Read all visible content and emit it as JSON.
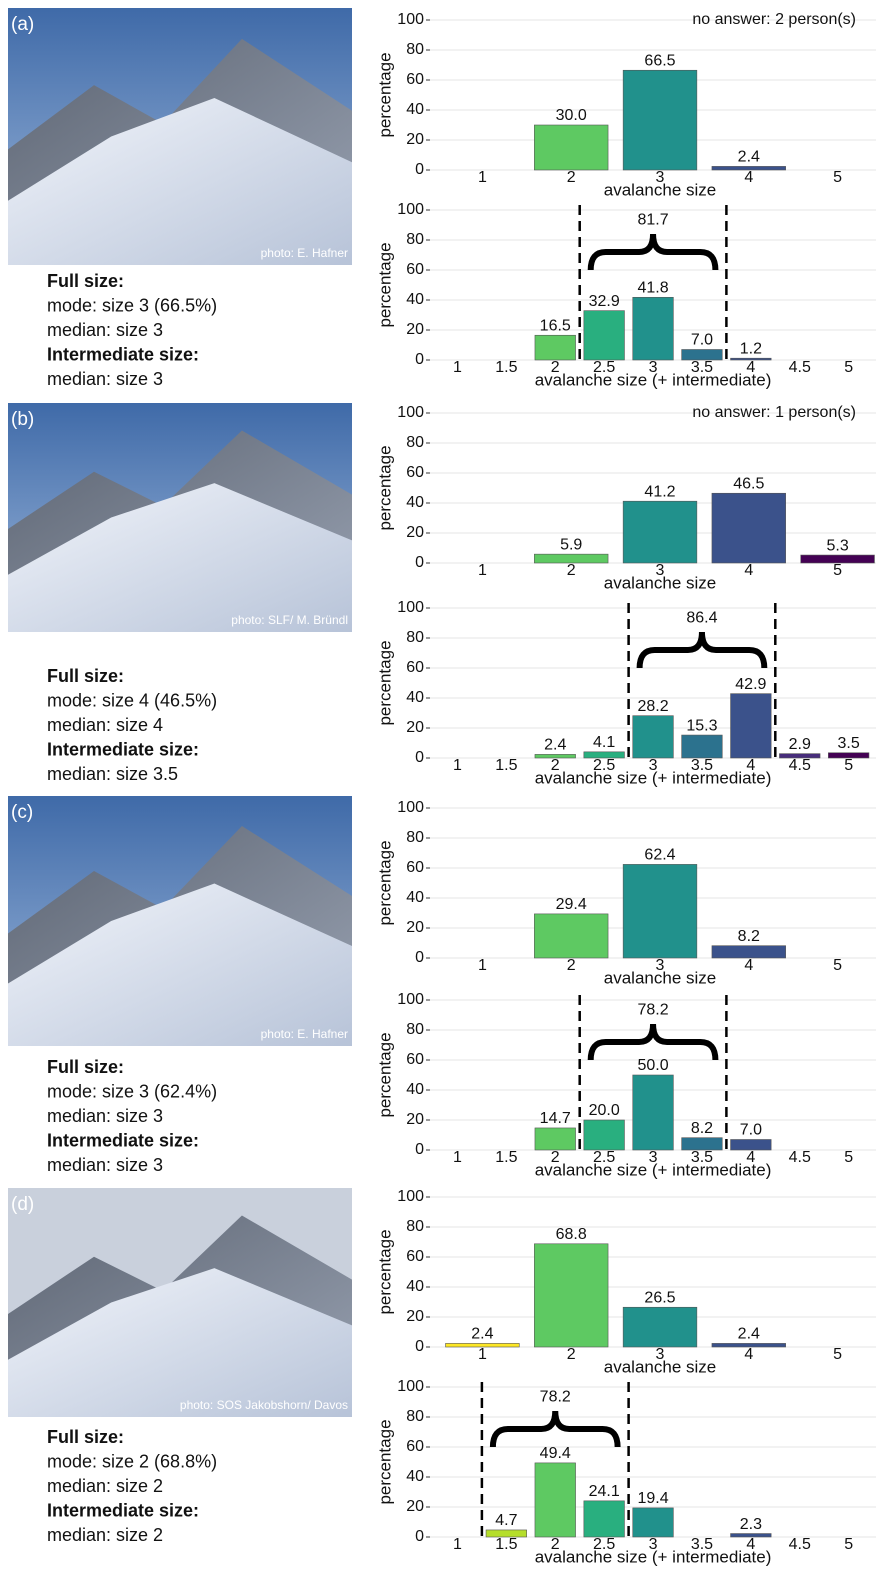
{
  "panels": [
    {
      "label": "(a)",
      "credit": "photo: E. Hafner",
      "summary": [
        "Full size:",
        "mode: size 3 (66.5%)",
        "median: size 3",
        "Intermediate size:",
        "median: size 3"
      ]
    },
    {
      "label": "(b)",
      "credit": "photo: SLF/ M. Bründl",
      "summary": [
        "Full size:",
        "mode: size 4 (46.5%)",
        "median: size 4",
        "Intermediate size:",
        "median: size 3.5"
      ]
    },
    {
      "label": "(c)",
      "credit": "photo: E. Hafner",
      "summary": [
        "Full size:",
        "mode: size 3 (62.4%)",
        "median: size 3",
        "Intermediate size:",
        "median: size 3"
      ]
    },
    {
      "label": "(d)",
      "credit": "photo: SOS Jakobshorn/ Davos",
      "summary": [
        "Full size:",
        "mode: size 2 (68.8%)",
        "median: size 2",
        "Intermediate size:",
        "median: size 2"
      ]
    }
  ],
  "chart_data": [
    {
      "type": "bar",
      "xlabel": "avalanche size",
      "ylabel": "percentage",
      "annotation": "no answer:  2 person(s)",
      "categories": [
        "1",
        "2",
        "3",
        "4",
        "5"
      ],
      "values": [
        0,
        30.0,
        66.5,
        2.4,
        0
      ],
      "value_labels": [
        null,
        "30.0",
        "66.5",
        "2.4",
        null
      ],
      "colors": [
        "#fde725",
        "#5ec962",
        "#21918c",
        "#3b528b",
        "#440154"
      ],
      "ylim": [
        0,
        100
      ],
      "yticks": [
        0,
        20,
        40,
        60,
        80,
        100
      ],
      "grid": true
    },
    {
      "type": "bar",
      "xlabel": "avalanche size (+ intermediate)",
      "ylabel": "percentage",
      "categories": [
        "1",
        "1.5",
        "2",
        "2.5",
        "3",
        "3.5",
        "4",
        "4.5",
        "5"
      ],
      "values": [
        0,
        0,
        16.5,
        32.9,
        41.8,
        7.0,
        1.2,
        0,
        0
      ],
      "value_labels": [
        null,
        null,
        "16.5",
        "32.9",
        "41.8",
        "7.0",
        "1.2",
        null,
        null
      ],
      "colors": [
        "#fde725",
        "#b5de2b",
        "#5ec962",
        "#29af7f",
        "#21918c",
        "#2c728e",
        "#3b528b",
        "#472d7b",
        "#440154"
      ],
      "ylim": [
        0,
        100
      ],
      "yticks": [
        0,
        20,
        40,
        60,
        80,
        100
      ],
      "grid": true,
      "bracket": {
        "value": 81.7,
        "categories": [
          "2.5",
          "3.5"
        ]
      }
    },
    {
      "type": "bar",
      "xlabel": "avalanche size",
      "ylabel": "percentage",
      "annotation": "no answer:  1 person(s)",
      "categories": [
        "1",
        "2",
        "3",
        "4",
        "5"
      ],
      "values": [
        0,
        5.9,
        41.2,
        46.5,
        5.3
      ],
      "value_labels": [
        null,
        "5.9",
        "41.2",
        "46.5",
        "5.3"
      ],
      "colors": [
        "#fde725",
        "#5ec962",
        "#21918c",
        "#3b528b",
        "#440154"
      ],
      "ylim": [
        0,
        100
      ],
      "yticks": [
        0,
        20,
        40,
        60,
        80,
        100
      ],
      "grid": true
    },
    {
      "type": "bar",
      "xlabel": "avalanche size (+ intermediate)",
      "ylabel": "percentage",
      "categories": [
        "1",
        "1.5",
        "2",
        "2.5",
        "3",
        "3.5",
        "4",
        "4.5",
        "5"
      ],
      "values": [
        0,
        0,
        2.4,
        4.1,
        28.2,
        15.3,
        42.9,
        2.9,
        3.5
      ],
      "value_labels": [
        null,
        null,
        "2.4",
        "4.1",
        "28.2",
        "15.3",
        "42.9",
        "2.9",
        "3.5"
      ],
      "colors": [
        "#fde725",
        "#b5de2b",
        "#5ec962",
        "#29af7f",
        "#21918c",
        "#2c728e",
        "#3b528b",
        "#472d7b",
        "#440154"
      ],
      "ylim": [
        0,
        100
      ],
      "yticks": [
        0,
        20,
        40,
        60,
        80,
        100
      ],
      "grid": true,
      "bracket": {
        "value": 86.4,
        "categories": [
          "3",
          "4"
        ]
      }
    },
    {
      "type": "bar",
      "xlabel": "avalanche size",
      "ylabel": "percentage",
      "categories": [
        "1",
        "2",
        "3",
        "4",
        "5"
      ],
      "values": [
        0,
        29.4,
        62.4,
        8.2,
        0
      ],
      "value_labels": [
        null,
        "29.4",
        "62.4",
        "8.2",
        null
      ],
      "colors": [
        "#fde725",
        "#5ec962",
        "#21918c",
        "#3b528b",
        "#440154"
      ],
      "ylim": [
        0,
        100
      ],
      "yticks": [
        0,
        20,
        40,
        60,
        80,
        100
      ],
      "grid": true
    },
    {
      "type": "bar",
      "xlabel": "avalanche size (+ intermediate)",
      "ylabel": "percentage",
      "categories": [
        "1",
        "1.5",
        "2",
        "2.5",
        "3",
        "3.5",
        "4",
        "4.5",
        "5"
      ],
      "values": [
        0,
        0,
        14.7,
        20.0,
        50.0,
        8.2,
        7.0,
        0,
        0
      ],
      "value_labels": [
        null,
        null,
        "14.7",
        "20.0",
        "50.0",
        "8.2",
        "7.0",
        null,
        null
      ],
      "colors": [
        "#fde725",
        "#b5de2b",
        "#5ec962",
        "#29af7f",
        "#21918c",
        "#2c728e",
        "#3b528b",
        "#472d7b",
        "#440154"
      ],
      "ylim": [
        0,
        100
      ],
      "yticks": [
        0,
        20,
        40,
        60,
        80,
        100
      ],
      "grid": true,
      "bracket": {
        "value": 78.2,
        "categories": [
          "2.5",
          "3.5"
        ]
      }
    },
    {
      "type": "bar",
      "xlabel": "avalanche size",
      "ylabel": "percentage",
      "categories": [
        "1",
        "2",
        "3",
        "4",
        "5"
      ],
      "values": [
        2.4,
        68.8,
        26.5,
        2.4,
        0
      ],
      "value_labels": [
        "2.4",
        "68.8",
        "26.5",
        "2.4",
        null
      ],
      "colors": [
        "#fde725",
        "#5ec962",
        "#21918c",
        "#3b528b",
        "#440154"
      ],
      "ylim": [
        0,
        100
      ],
      "yticks": [
        0,
        20,
        40,
        60,
        80,
        100
      ],
      "grid": true
    },
    {
      "type": "bar",
      "xlabel": "avalanche size (+ intermediate)",
      "ylabel": "percentage",
      "categories": [
        "1",
        "1.5",
        "2",
        "2.5",
        "3",
        "3.5",
        "4",
        "4.5",
        "5"
      ],
      "values": [
        0,
        4.7,
        49.4,
        24.1,
        19.4,
        0,
        2.3,
        0,
        0
      ],
      "value_labels": [
        null,
        "4.7",
        "49.4",
        "24.1",
        "19.4",
        null,
        "2.3",
        null,
        null
      ],
      "colors": [
        "#fde725",
        "#b5de2b",
        "#5ec962",
        "#29af7f",
        "#21918c",
        "#2c728e",
        "#3b528b",
        "#472d7b",
        "#440154"
      ],
      "ylim": [
        0,
        100
      ],
      "yticks": [
        0,
        20,
        40,
        60,
        80,
        100
      ],
      "grid": true,
      "bracket": {
        "value": 78.2,
        "categories": [
          "1.5",
          "2.5"
        ]
      }
    }
  ]
}
